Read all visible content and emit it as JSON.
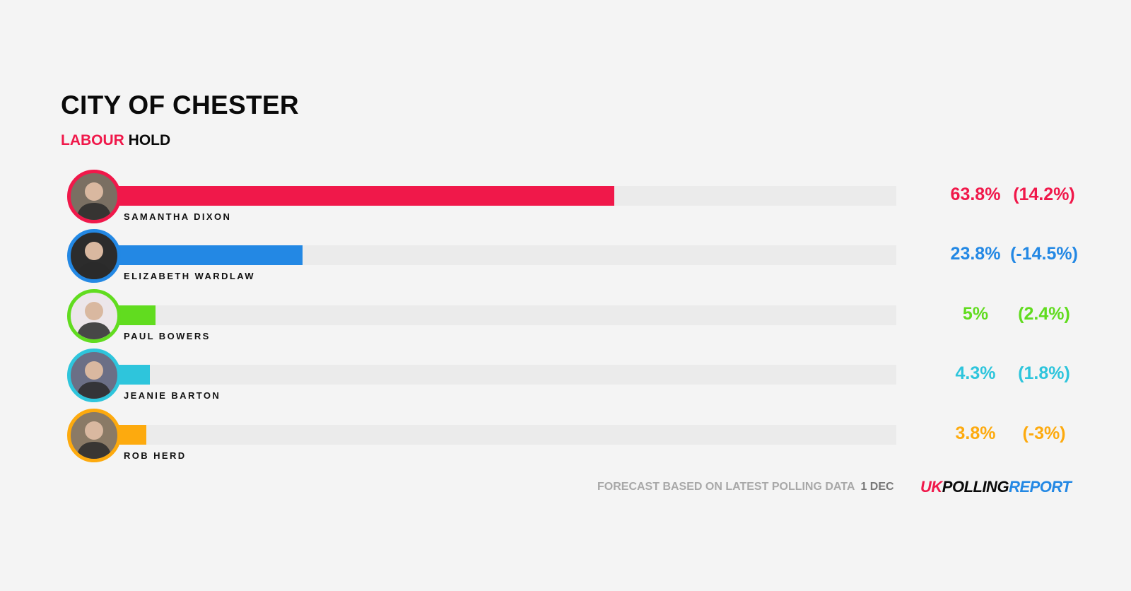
{
  "header": {
    "title": "CITY OF CHESTER",
    "result_party": "LABOUR",
    "result_type": "HOLD",
    "result_party_color": "#f0184a"
  },
  "candidates": [
    {
      "name": "SAMANTHA DIXON",
      "share": "63.8%",
      "change": "(14.2%)",
      "value": 63.8,
      "color": "#f0184a",
      "avatar_bg": "#7a6f62"
    },
    {
      "name": "ELIZABETH WARDLAW",
      "share": "23.8%",
      "change": "(-14.5%)",
      "value": 23.8,
      "color": "#2388e4",
      "avatar_bg": "#2c2c2c"
    },
    {
      "name": "PAUL BOWERS",
      "share": "5%",
      "change": "(2.4%)",
      "value": 5.0,
      "color": "#61dc1f",
      "avatar_bg": "#ece6ea"
    },
    {
      "name": "JEANIE BARTON",
      "share": "4.3%",
      "change": "(1.8%)",
      "value": 4.3,
      "color": "#2ec5dc",
      "avatar_bg": "#6b6f86"
    },
    {
      "name": "ROB HERD",
      "share": "3.8%",
      "change": "(-3%)",
      "value": 3.8,
      "color": "#fdaa0e",
      "avatar_bg": "#8a7a66"
    }
  ],
  "footer": {
    "note": "FORECAST BASED ON LATEST POLLING DATA",
    "date": "1 DEC",
    "logo_uk": "UK",
    "logo_polling": "POLLING",
    "logo_report": "REPORT"
  },
  "chart_data": {
    "type": "bar",
    "orientation": "horizontal",
    "title": "CITY OF CHESTER",
    "subtitle": "LABOUR HOLD",
    "categories": [
      "SAMANTHA DIXON",
      "ELIZABETH WARDLAW",
      "PAUL BOWERS",
      "JEANIE BARTON",
      "ROB HERD"
    ],
    "series": [
      {
        "name": "Vote share (%)",
        "values": [
          63.8,
          23.8,
          5.0,
          4.3,
          3.8
        ]
      },
      {
        "name": "Change (%)",
        "values": [
          14.2,
          -14.5,
          2.4,
          1.8,
          -3.0
        ]
      }
    ],
    "colors": [
      "#f0184a",
      "#2388e4",
      "#61dc1f",
      "#2ec5dc",
      "#fdaa0e"
    ],
    "xlim": [
      0,
      100
    ],
    "grid": false,
    "legend": "none",
    "annotations": [
      "FORECAST BASED ON LATEST POLLING DATA 1 DEC",
      "UKPOLLINGREPORT"
    ]
  }
}
